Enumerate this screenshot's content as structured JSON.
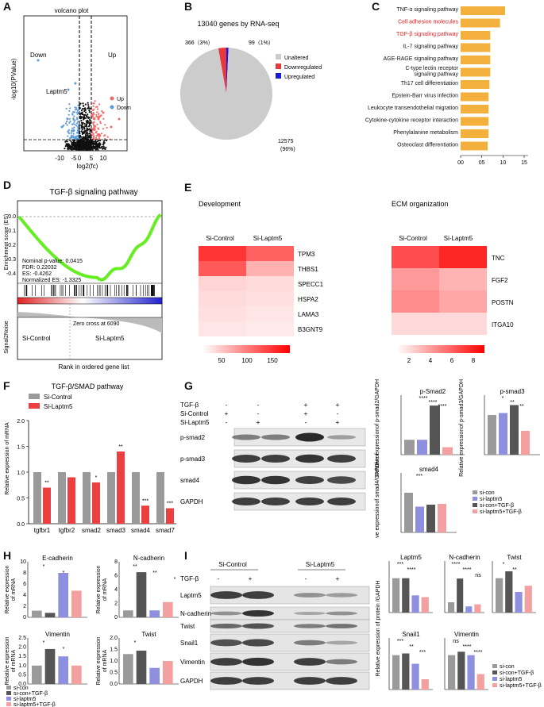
{
  "panels": {
    "A": {
      "label": "A",
      "title": "volcano plot",
      "ylabel": "-log10(PValue)",
      "xlabel": "log2(fc)",
      "down": "Down",
      "up": "Up",
      "gene": "Laptm5",
      "ticks": [
        "-10",
        "-5",
        "0",
        "5",
        "10"
      ],
      "legend": [
        {
          "name": "Up",
          "color": "#f06a6a"
        },
        {
          "name": "Down",
          "color": "#5b9bd5"
        }
      ]
    },
    "B": {
      "label": "B",
      "title": "13040 genes by RNA-seq",
      "slices": [
        {
          "name": "Unaltered",
          "value": 12575,
          "label": "12575\n(96%)",
          "color": "#cccccc"
        },
        {
          "name": "Downregulated",
          "value": 366,
          "label": "366（3%）",
          "color": "#e8383d"
        },
        {
          "name": "Upregulated",
          "value": 99,
          "label": "99（1%）",
          "color": "#1a1adb"
        }
      ]
    },
    "C": {
      "label": "C",
      "xlabel": "-log10fdr",
      "ticks": [
        "00",
        "05",
        "10",
        "15"
      ],
      "pathways": [
        {
          "name": "TNF-α signaling pathway",
          "value": 1.05,
          "red": false
        },
        {
          "name": "Cell adhesion molecules",
          "value": 0.93,
          "red": true
        },
        {
          "name": "TGF-β signaling pathway",
          "value": 0.7,
          "red": true
        },
        {
          "name": "IL-7 signaling pathway",
          "value": 0.7,
          "red": false
        },
        {
          "name": "AGE-RAGE signaling pathway",
          "value": 0.7,
          "red": false
        },
        {
          "name": "C-type lectin receptor signaling pathway",
          "value": 0.7,
          "red": false
        },
        {
          "name": "Th17 cell differentiation",
          "value": 0.68,
          "red": false
        },
        {
          "name": "Epstein-Barr virus infection",
          "value": 0.66,
          "red": false
        },
        {
          "name": "Leukocyte transendothelial migration",
          "value": 0.66,
          "red": false
        },
        {
          "name": "Cytokine-cytokine receptor interaction",
          "value": 0.66,
          "red": false
        },
        {
          "name": "Phenylalanine metabolism",
          "value": 0.66,
          "red": false
        },
        {
          "name": "Osteoclast differentiation",
          "value": 0.64,
          "red": false
        }
      ]
    },
    "D": {
      "label": "D",
      "title": "TGF-β signaling pathway",
      "ylabel": "Enrichment score (ES)",
      "stats": [
        "Nominal p-value: 0.0415",
        "FDR: 0.22032",
        "ES: -0.4262",
        "Normalized ES: -1.3325"
      ],
      "yticks": [
        "0.0",
        "-0.1",
        "-0.2",
        "-0.3",
        "-0.4"
      ],
      "zero": "Zero cross at 6090",
      "left": "Si-Control",
      "right": "Si-Laptm5",
      "ylabel2": "Signal2Noise",
      "xlabel": "Rank in ordered gene list"
    },
    "E": {
      "label": "E",
      "dev_title": "Development",
      "ecm_title": "ECM organization",
      "cols": [
        "Si-Control",
        "Si-Laptm5"
      ],
      "dev_genes": [
        "TPM3",
        "THBS1",
        "SPECC1",
        "HSPA2",
        "LAMA3",
        "B3GNT9"
      ],
      "dev_vals": [
        [
          140,
          110
        ],
        [
          115,
          55
        ],
        [
          30,
          25
        ],
        [
          25,
          22
        ],
        [
          22,
          18
        ],
        [
          18,
          15
        ]
      ],
      "ecm_genes": [
        "TNC",
        "FGF2",
        "POSTN",
        "ITGA10"
      ],
      "ecm_vals": [
        [
          7,
          8.5
        ],
        [
          4,
          3
        ],
        [
          4.5,
          3.5
        ],
        [
          1.5,
          1.5
        ]
      ],
      "dev_scale": [
        "50",
        "100",
        "150"
      ],
      "ecm_scale": [
        "2",
        "4",
        "6",
        "8"
      ]
    },
    "F": {
      "label": "F",
      "title": "TGF-β/SMAD pathway",
      "ylabel": "Relative expression of mRNA",
      "legend": [
        "Si-Control",
        "Si-Laptm5"
      ],
      "categories": [
        "tgfbr1",
        "tgfbr2",
        "smad2",
        "smad3",
        "smad4",
        "smad7"
      ],
      "control": [
        1.0,
        1.0,
        1.0,
        1.0,
        1.0,
        1.0
      ],
      "laptm5": [
        0.7,
        0.9,
        0.8,
        1.4,
        0.35,
        0.3
      ],
      "sig": [
        "**",
        "",
        "*",
        "**",
        "***",
        "***"
      ],
      "yticks": [
        "0.0",
        "0.5",
        "1.0",
        "1.5",
        "2.0"
      ]
    },
    "G": {
      "label": "G",
      "rows": [
        "TGF-β",
        "Si-Control",
        "Si-Laptm5"
      ],
      "signs": [
        [
          "-",
          "-",
          "+",
          "+"
        ],
        [
          "+",
          "-",
          "+",
          "-"
        ],
        [
          "-",
          "+",
          "-",
          "+"
        ]
      ],
      "bands": [
        "p-smad2",
        "p-smad3",
        "smad4",
        "GAPDH"
      ],
      "charts": [
        {
          "title": "p-Smad2",
          "ylabel": "Relative expressionof p-smad2/GAPDH",
          "values": [
            1.0,
            1.0,
            3.3,
            0.5
          ],
          "ymax": 4,
          "sig": [
            "****",
            "****",
            "****"
          ]
        },
        {
          "title": "p-smad3",
          "ylabel": "Relative expressionof p-smad3/GAPDH",
          "values": [
            1.0,
            1.05,
            1.25,
            0.6
          ],
          "ymax": 1.5,
          "sig": [
            "*",
            "**",
            "**"
          ]
        },
        {
          "title": "smad4",
          "ylabel": "Relative expressionof smad4/GAPDH",
          "values": [
            1.0,
            0.65,
            0.7,
            0.72
          ],
          "ymax": 1.5,
          "sig": [
            "***"
          ]
        }
      ],
      "legend": [
        "si-con",
        "si-laptm5",
        "si-con+TGF-β",
        "si-laptm5+TGF-β"
      ]
    },
    "H": {
      "label": "H",
      "ylabel": "Relative expression of mRNA",
      "charts": [
        {
          "title": "E-cadherin",
          "values": [
            1.2,
            0.8,
            8.0,
            4.8
          ],
          "ymax": 10,
          "ticks": [
            "0",
            "2",
            "4",
            "6",
            "8",
            "10"
          ],
          "sig": [
            "*",
            "*"
          ]
        },
        {
          "title": "N-cadherin",
          "values": [
            1.0,
            6.5,
            1.0,
            2.2
          ],
          "ymax": 8,
          "ticks": [
            "0",
            "2",
            "4",
            "6",
            "8"
          ],
          "sig": [
            "**",
            "**",
            "*"
          ]
        },
        {
          "title": "Vimentin",
          "values": [
            1.0,
            1.9,
            1.5,
            1.0
          ],
          "ymax": 2.5,
          "ticks": [
            "0.0",
            "0.5",
            "1.0",
            "1.5",
            "2.0",
            "2.5"
          ],
          "sig": [
            "*",
            "*"
          ]
        },
        {
          "title": "Twist",
          "values": [
            1.3,
            1.45,
            0.7,
            1.0
          ],
          "ymax": 2.0,
          "ticks": [
            "0.0",
            "0.5",
            "1.0",
            "1.5",
            "2.0"
          ],
          "sig": [
            "*"
          ]
        }
      ],
      "legend": [
        "si-con",
        "si-con+TGF-β",
        "si-laptm5",
        "si-laptm5+TGF-β"
      ]
    },
    "I": {
      "label": "I",
      "groups": [
        "Si-Control",
        "Si-Laptm5"
      ],
      "row": "TGF-β",
      "signs": [
        "-",
        "+",
        "-",
        "+"
      ],
      "bands": [
        "Laptm5",
        "N-cadherin",
        "Twist",
        "Snail1",
        "Vimentin",
        "GAPDH"
      ],
      "ylabel": "Relative expression of protein /GAPDH",
      "charts": [
        {
          "title": "Laptm5",
          "values": [
            1.0,
            1.0,
            0.5,
            0.45
          ],
          "ymax": 1.5,
          "sig": [
            "***",
            "****"
          ]
        },
        {
          "title": "N-cadherin",
          "values": [
            1.0,
            3.3,
            0.6,
            0.8
          ],
          "ymax": 5,
          "sig": [
            "****",
            "****",
            "ns"
          ]
        },
        {
          "title": "Twist",
          "values": [
            1.0,
            1.2,
            0.6,
            0.78
          ],
          "ymax": 1.5,
          "sig": [
            "*",
            "**"
          ]
        },
        {
          "title": "Snail1",
          "values": [
            1.0,
            1.05,
            0.75,
            0.3
          ],
          "ymax": 1.5,
          "sig": [
            "***",
            "**",
            "***"
          ]
        },
        {
          "title": "Vimentin",
          "values": [
            1.0,
            1.1,
            1.0,
            0.45
          ],
          "ymax": 1.5,
          "sig": [
            "ns",
            "****",
            "****"
          ]
        }
      ],
      "legend": [
        "si-con",
        "si-con+TGF-β",
        "si-laptm5",
        "si-laptm5+TGF-β"
      ]
    }
  },
  "colors": {
    "gray": "#9a9a9a",
    "dark": "#555555",
    "blue": "#8f8fe0",
    "pink": "#f5a0a0",
    "red": "#ec4040",
    "orange": "#f3b03d",
    "green": "#66ee22"
  }
}
